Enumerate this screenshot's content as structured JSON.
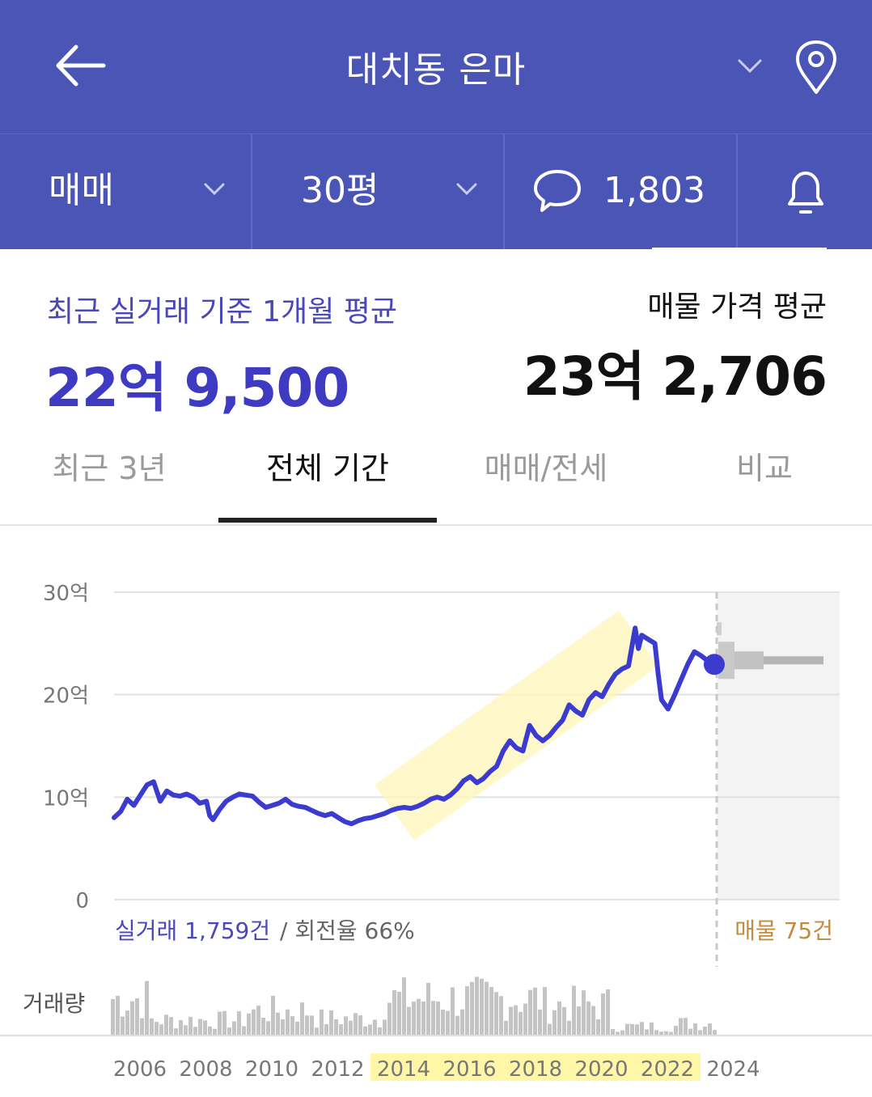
{
  "header": {
    "title": "대치동 은마",
    "back_icon": "arrow-left-icon",
    "dropdown_icon": "chevron-down-icon",
    "location_icon": "map-pin-icon"
  },
  "filters": {
    "trade_type": "매매",
    "size": "30평",
    "comments_count": "1,803",
    "alert_icon": "bell-icon"
  },
  "summary": {
    "recent_label": "최근 실거래 기준 1개월 평균",
    "recent_value": "22억 9,500",
    "listing_label": "매물 가격 평균",
    "listing_value": "23억 2,706"
  },
  "tabs": [
    {
      "label": "최근 3년",
      "active": false
    },
    {
      "label": "전체 기간",
      "active": true
    },
    {
      "label": "매매/전세",
      "active": false
    },
    {
      "label": "비교",
      "active": false
    }
  ],
  "chart_data": {
    "type": "line",
    "y_unit": "억",
    "ylim": [
      0,
      30
    ],
    "y_ticks": [
      "30억",
      "20억",
      "10억",
      "0"
    ],
    "x_ticks": [
      "2006",
      "2008",
      "2010",
      "2012",
      "2014",
      "2016",
      "2018",
      "2020",
      "2022",
      "2024"
    ],
    "highlight_period": [
      "2014",
      "2022"
    ],
    "series": [
      {
        "values": [
          [
            2006.0,
            8.0
          ],
          [
            2006.2,
            8.6
          ],
          [
            2006.4,
            9.8
          ],
          [
            2006.6,
            9.2
          ],
          [
            2006.8,
            10.2
          ],
          [
            2007.0,
            11.2
          ],
          [
            2007.2,
            11.5
          ],
          [
            2007.4,
            9.6
          ],
          [
            2007.6,
            10.6
          ],
          [
            2007.8,
            10.2
          ],
          [
            2008.0,
            10.1
          ],
          [
            2008.2,
            10.3
          ],
          [
            2008.4,
            10.0
          ],
          [
            2008.6,
            9.4
          ],
          [
            2008.8,
            9.6
          ],
          [
            2008.9,
            8.2
          ],
          [
            2009.0,
            7.8
          ],
          [
            2009.2,
            8.8
          ],
          [
            2009.4,
            9.6
          ],
          [
            2009.6,
            10.0
          ],
          [
            2009.8,
            10.3
          ],
          [
            2010.0,
            10.2
          ],
          [
            2010.2,
            10.1
          ],
          [
            2010.4,
            9.5
          ],
          [
            2010.6,
            9.0
          ],
          [
            2010.8,
            9.2
          ],
          [
            2011.0,
            9.4
          ],
          [
            2011.2,
            9.8
          ],
          [
            2011.4,
            9.3
          ],
          [
            2011.6,
            9.1
          ],
          [
            2011.8,
            9.0
          ],
          [
            2012.0,
            8.7
          ],
          [
            2012.2,
            8.4
          ],
          [
            2012.4,
            8.2
          ],
          [
            2012.6,
            8.4
          ],
          [
            2012.8,
            8.0
          ],
          [
            2013.0,
            7.6
          ],
          [
            2013.2,
            7.4
          ],
          [
            2013.4,
            7.7
          ],
          [
            2013.6,
            7.9
          ],
          [
            2013.8,
            8.0
          ],
          [
            2014.0,
            8.2
          ],
          [
            2014.2,
            8.4
          ],
          [
            2014.4,
            8.7
          ],
          [
            2014.6,
            8.9
          ],
          [
            2014.8,
            9.0
          ],
          [
            2015.0,
            8.9
          ],
          [
            2015.2,
            9.1
          ],
          [
            2015.4,
            9.4
          ],
          [
            2015.6,
            9.8
          ],
          [
            2015.8,
            10.0
          ],
          [
            2016.0,
            9.8
          ],
          [
            2016.2,
            10.2
          ],
          [
            2016.4,
            10.8
          ],
          [
            2016.6,
            11.6
          ],
          [
            2016.8,
            12.0
          ],
          [
            2017.0,
            11.4
          ],
          [
            2017.2,
            11.8
          ],
          [
            2017.4,
            12.5
          ],
          [
            2017.6,
            13.0
          ],
          [
            2017.8,
            14.5
          ],
          [
            2018.0,
            15.5
          ],
          [
            2018.2,
            14.8
          ],
          [
            2018.4,
            14.5
          ],
          [
            2018.6,
            17.0
          ],
          [
            2018.8,
            16.0
          ],
          [
            2019.0,
            15.5
          ],
          [
            2019.2,
            16.0
          ],
          [
            2019.4,
            16.8
          ],
          [
            2019.6,
            17.5
          ],
          [
            2019.8,
            19.0
          ],
          [
            2020.0,
            18.4
          ],
          [
            2020.2,
            18.0
          ],
          [
            2020.4,
            19.5
          ],
          [
            2020.6,
            20.2
          ],
          [
            2020.8,
            19.8
          ],
          [
            2021.0,
            21.0
          ],
          [
            2021.2,
            22.0
          ],
          [
            2021.4,
            22.5
          ],
          [
            2021.6,
            22.8
          ],
          [
            2021.8,
            26.5
          ],
          [
            2021.9,
            24.5
          ],
          [
            2022.0,
            25.8
          ],
          [
            2022.2,
            25.4
          ],
          [
            2022.4,
            25.0
          ],
          [
            2022.5,
            22.0
          ],
          [
            2022.6,
            19.5
          ],
          [
            2022.8,
            18.6
          ],
          [
            2023.0,
            20.0
          ],
          [
            2023.2,
            21.5
          ],
          [
            2023.4,
            23.0
          ],
          [
            2023.6,
            24.2
          ],
          [
            2023.8,
            23.8
          ],
          [
            2024.0,
            23.3
          ],
          [
            2024.2,
            22.95
          ]
        ]
      }
    ],
    "listing_price_last": 23.27,
    "deal_stats_label": "실거래 1,759건",
    "turnover_label": "/ 회전율 66%",
    "listing_count_label": "매물 75건",
    "volume_label": "거래량"
  }
}
